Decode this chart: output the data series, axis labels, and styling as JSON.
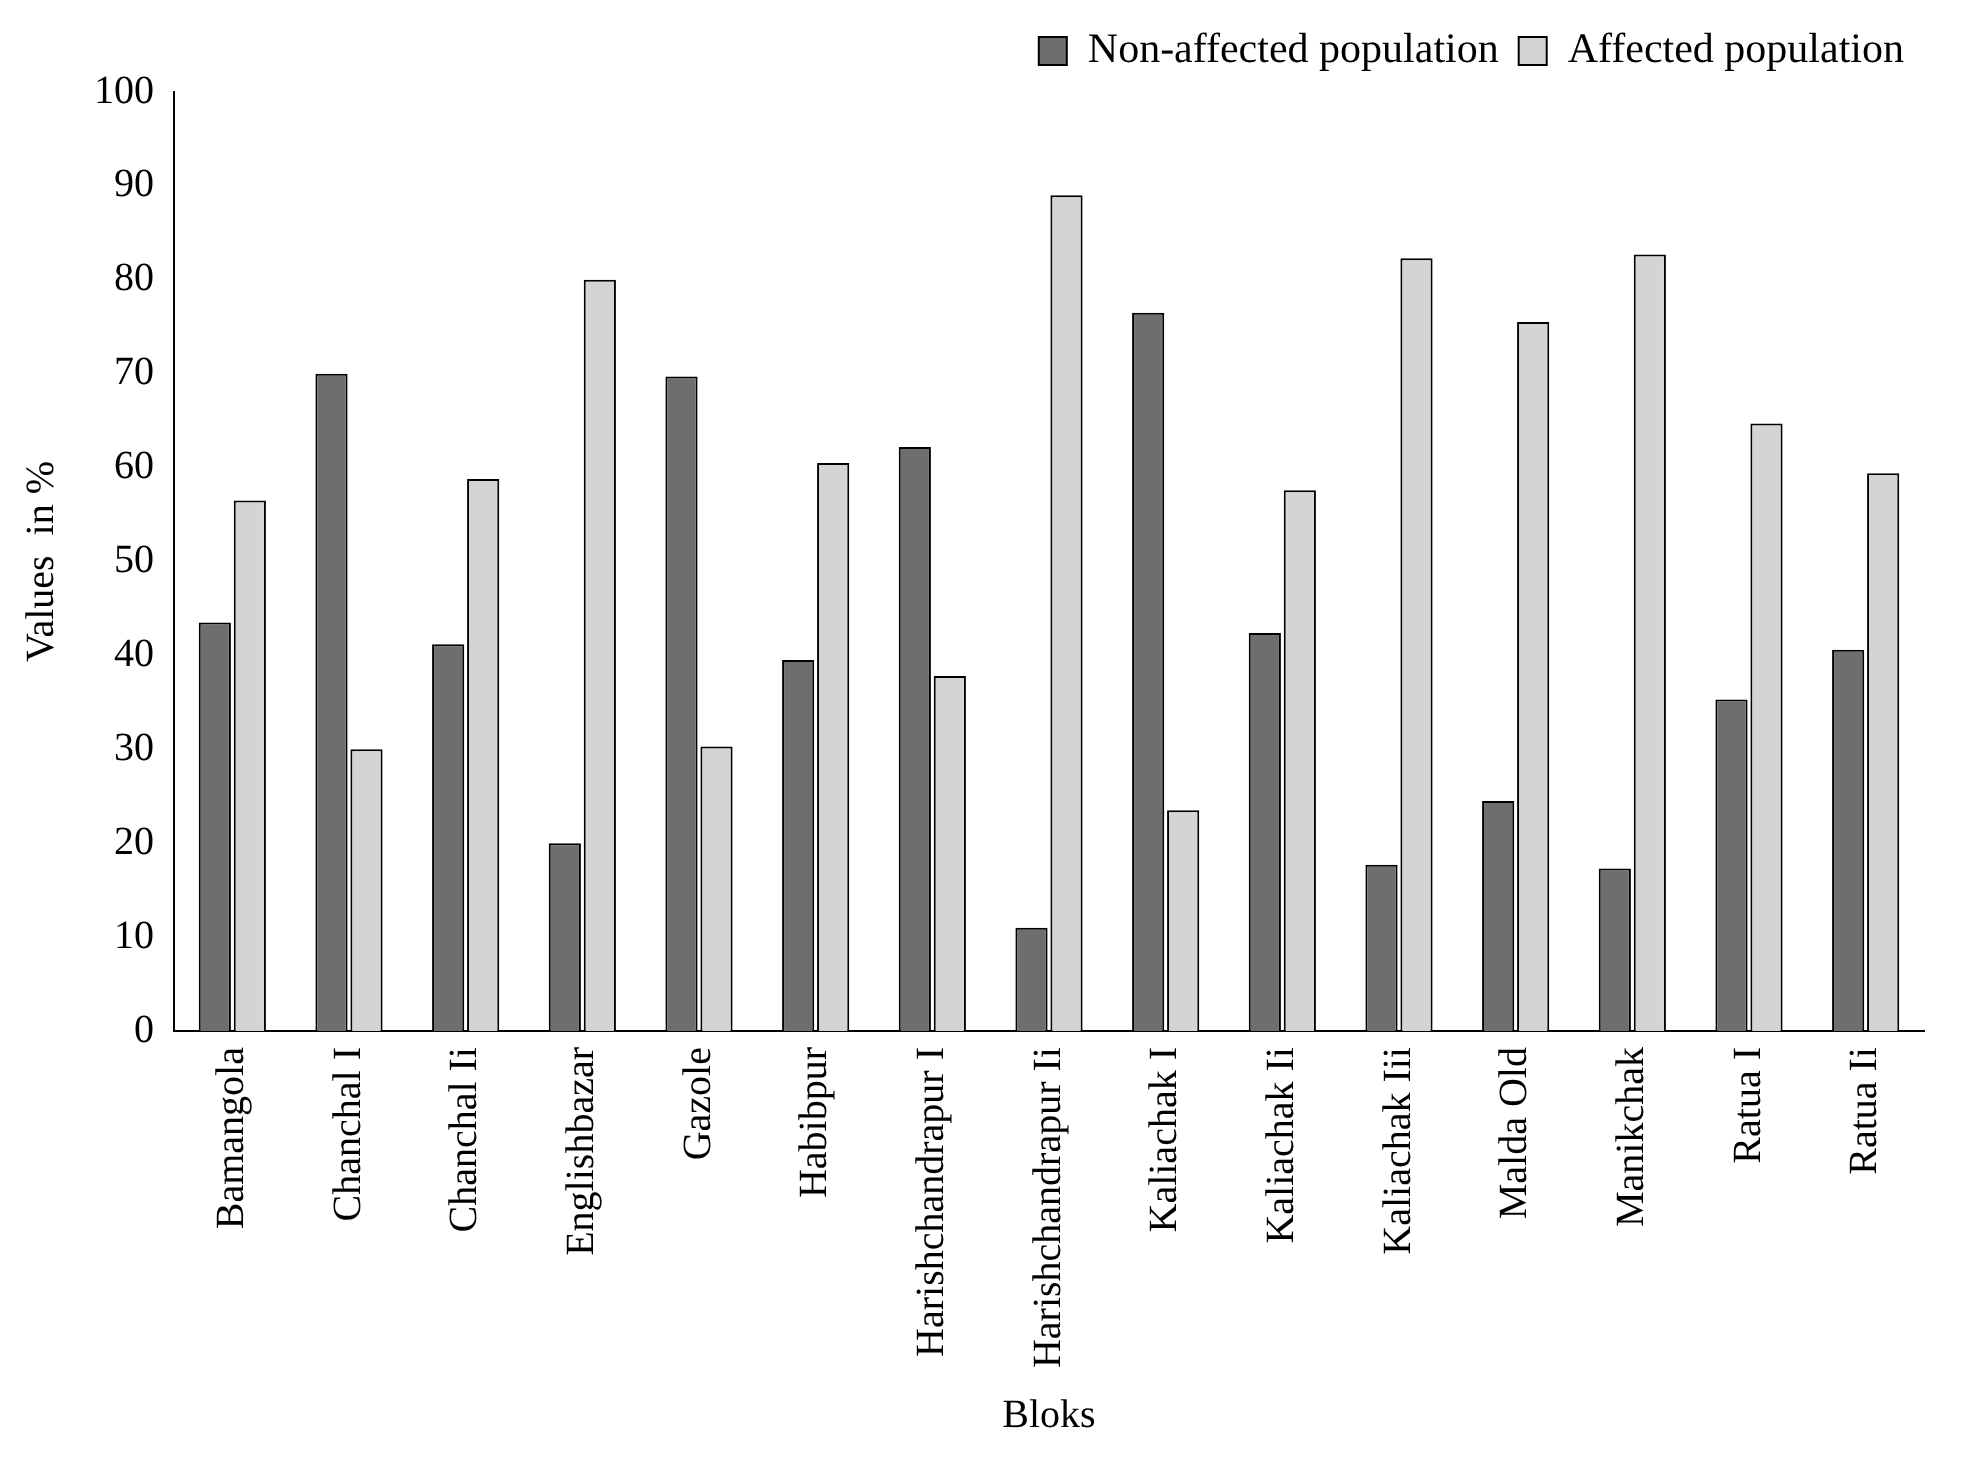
{
  "chart_data": {
    "type": "bar",
    "xlabel": "Bloks",
    "ylabel": "Values  in %",
    "categories": [
      "Bamangola",
      "Chanchal I",
      "Chanchal Ii",
      "Englishbazar",
      "Gazole",
      "Habibpur",
      "Harishchandrapur I",
      "Harishchandrapur Ii",
      "Kaliachak I",
      "Kaliachak Ii",
      "Kaliachak Iii",
      "Malda Old",
      "Manikchak",
      "Ratua I",
      "Ratua Ii"
    ],
    "series": [
      {
        "name": "Non-affected population",
        "color": "#6e6e6e",
        "values": [
          43.5,
          70,
          41.2,
          20,
          69.7,
          39.5,
          62.2,
          11,
          76.5,
          42.4,
          17.7,
          24.5,
          17.3,
          35.3,
          40.6
        ]
      },
      {
        "name": "Affected population",
        "color": "#d4d4d4",
        "values": [
          56.5,
          30,
          58.8,
          80,
          30.3,
          60.5,
          37.8,
          89,
          23.5,
          57.6,
          82.3,
          75.5,
          82.7,
          64.7,
          59.4
        ]
      }
    ],
    "ylim": [
      0,
      100
    ],
    "yticks": [
      0,
      10,
      20,
      30,
      40,
      50,
      60,
      70,
      80,
      90,
      100
    ],
    "grid": false,
    "legend": "top right"
  }
}
